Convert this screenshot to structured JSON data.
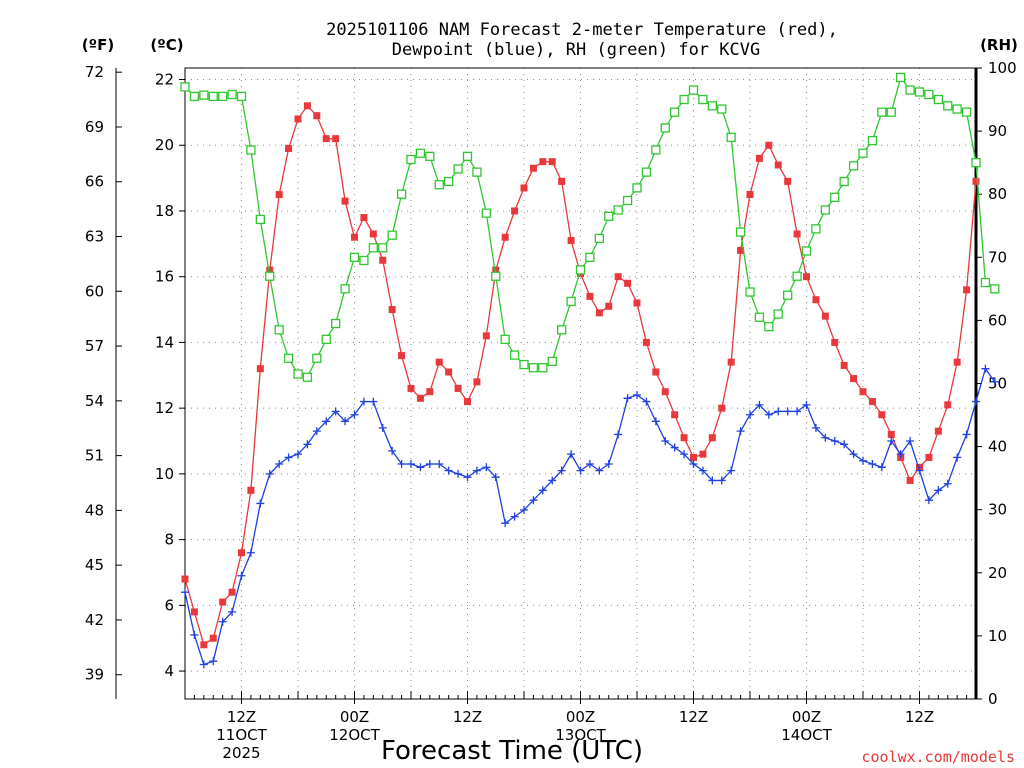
{
  "chart_data": {
    "type": "line",
    "title_lines": [
      "2025101106 NAM Forecast 2-meter Temperature (red),",
      "Dewpoint (blue), RH (green) for KCVG"
    ],
    "xlabel": "Forecast Time (UTC)",
    "credit": "coolwx.com/models",
    "y_left_units": {
      "f": "(ºF)",
      "c": "(ºC)"
    },
    "y_right_units": "(RH)",
    "y_c_range": [
      3.15,
      22.35
    ],
    "y_c_ticks": [
      "4",
      "6",
      "8",
      "10",
      "12",
      "14",
      "16",
      "18",
      "20",
      "22"
    ],
    "y_f_ticks": [
      "39",
      "42",
      "45",
      "48",
      "51",
      "54",
      "57",
      "60",
      "63",
      "66",
      "69",
      "72"
    ],
    "y_rh_range": [
      0,
      100
    ],
    "y_rh_ticks": [
      "0",
      "10",
      "20",
      "30",
      "40",
      "50",
      "60",
      "70",
      "80",
      "90",
      "100"
    ],
    "x_range_hours": [
      6,
      90
    ],
    "x_ticks": [
      {
        "hour": 12,
        "lines": [
          "12Z",
          "11OCT",
          "2025"
        ]
      },
      {
        "hour": 24,
        "lines": [
          "00Z",
          "12OCT"
        ]
      },
      {
        "hour": 36,
        "lines": [
          "12Z"
        ]
      },
      {
        "hour": 48,
        "lines": [
          "00Z",
          "13OCT"
        ]
      },
      {
        "hour": 60,
        "lines": [
          "12Z"
        ]
      },
      {
        "hour": 72,
        "lines": [
          "00Z",
          "14OCT"
        ]
      },
      {
        "hour": 84,
        "lines": [
          "12Z"
        ]
      }
    ],
    "grid": true,
    "series": [
      {
        "name": "Temperature",
        "unit": "C",
        "color": "#e8383c",
        "marker": "filled-square",
        "points": [
          [
            6,
            6.8
          ],
          [
            7,
            5.8
          ],
          [
            8,
            4.8
          ],
          [
            9,
            5
          ],
          [
            10,
            6.1
          ],
          [
            11,
            6.4
          ],
          [
            12,
            7.6
          ],
          [
            13,
            9.5
          ],
          [
            14,
            13.2
          ],
          [
            15,
            16.2
          ],
          [
            16,
            18.5
          ],
          [
            17,
            19.9
          ],
          [
            18,
            20.8
          ],
          [
            19,
            21.2
          ],
          [
            20,
            20.9
          ],
          [
            21,
            20.2
          ],
          [
            22,
            20.2
          ],
          [
            23,
            18.3
          ],
          [
            24,
            17.2
          ],
          [
            25,
            17.8
          ],
          [
            26,
            17.3
          ],
          [
            27,
            16.5
          ],
          [
            28,
            15
          ],
          [
            29,
            13.6
          ],
          [
            30,
            12.6
          ],
          [
            31,
            12.3
          ],
          [
            32,
            12.5
          ],
          [
            33,
            13.4
          ],
          [
            34,
            13.1
          ],
          [
            35,
            12.6
          ],
          [
            36,
            12.2
          ],
          [
            37,
            12.8
          ],
          [
            38,
            14.2
          ],
          [
            39,
            16.2
          ],
          [
            40,
            17.2
          ],
          [
            41,
            18
          ],
          [
            42,
            18.7
          ],
          [
            43,
            19.3
          ],
          [
            44,
            19.5
          ],
          [
            45,
            19.5
          ],
          [
            46,
            18.9
          ],
          [
            47,
            17.1
          ],
          [
            48,
            16.1
          ],
          [
            49,
            15.4
          ],
          [
            50,
            14.9
          ],
          [
            51,
            15.1
          ],
          [
            52,
            16
          ],
          [
            53,
            15.8
          ],
          [
            54,
            15.2
          ],
          [
            55,
            14
          ],
          [
            56,
            13.1
          ],
          [
            57,
            12.5
          ],
          [
            58,
            11.8
          ],
          [
            59,
            11.1
          ],
          [
            60,
            10.5
          ],
          [
            61,
            10.6
          ],
          [
            62,
            11.1
          ],
          [
            63,
            12
          ],
          [
            64,
            13.4
          ],
          [
            65,
            16.8
          ],
          [
            66,
            18.5
          ],
          [
            67,
            19.6
          ],
          [
            68,
            20
          ],
          [
            69,
            19.4
          ],
          [
            70,
            18.9
          ],
          [
            71,
            17.3
          ],
          [
            72,
            16
          ],
          [
            73,
            15.3
          ],
          [
            74,
            14.8
          ],
          [
            75,
            14
          ],
          [
            76,
            13.3
          ],
          [
            77,
            12.9
          ],
          [
            78,
            12.5
          ],
          [
            79,
            12.2
          ],
          [
            80,
            11.8
          ],
          [
            81,
            11.2
          ],
          [
            82,
            10.5
          ],
          [
            83,
            9.8
          ],
          [
            84,
            10.2
          ],
          [
            85,
            10.5
          ],
          [
            86,
            11.3
          ],
          [
            87,
            12.1
          ],
          [
            88,
            13.4
          ],
          [
            89,
            15.6
          ],
          [
            90,
            18.9
          ]
        ]
      },
      {
        "name": "Dewpoint",
        "unit": "C",
        "color": "#2040e0",
        "marker": "plus",
        "points": [
          [
            6,
            6.4
          ],
          [
            7,
            5.1
          ],
          [
            8,
            4.2
          ],
          [
            9,
            4.3
          ],
          [
            10,
            5.5
          ],
          [
            11,
            5.8
          ],
          [
            12,
            6.9
          ],
          [
            13,
            7.6
          ],
          [
            14,
            9.1
          ],
          [
            15,
            10
          ],
          [
            16,
            10.3
          ],
          [
            17,
            10.5
          ],
          [
            18,
            10.6
          ],
          [
            19,
            10.9
          ],
          [
            20,
            11.3
          ],
          [
            21,
            11.6
          ],
          [
            22,
            11.9
          ],
          [
            23,
            11.6
          ],
          [
            24,
            11.8
          ],
          [
            25,
            12.2
          ],
          [
            26,
            12.2
          ],
          [
            27,
            11.4
          ],
          [
            28,
            10.7
          ],
          [
            29,
            10.3
          ],
          [
            30,
            10.3
          ],
          [
            31,
            10.2
          ],
          [
            32,
            10.3
          ],
          [
            33,
            10.3
          ],
          [
            34,
            10.1
          ],
          [
            35,
            10
          ],
          [
            36,
            9.9
          ],
          [
            37,
            10.1
          ],
          [
            38,
            10.2
          ],
          [
            39,
            9.9
          ],
          [
            40,
            8.5
          ],
          [
            41,
            8.7
          ],
          [
            42,
            8.9
          ],
          [
            43,
            9.2
          ],
          [
            44,
            9.5
          ],
          [
            45,
            9.8
          ],
          [
            46,
            10.1
          ],
          [
            47,
            10.6
          ],
          [
            48,
            10.1
          ],
          [
            49,
            10.3
          ],
          [
            50,
            10.1
          ],
          [
            51,
            10.3
          ],
          [
            52,
            11.2
          ],
          [
            53,
            12.3
          ],
          [
            54,
            12.4
          ],
          [
            55,
            12.2
          ],
          [
            56,
            11.6
          ],
          [
            57,
            11
          ],
          [
            58,
            10.8
          ],
          [
            59,
            10.6
          ],
          [
            60,
            10.3
          ],
          [
            61,
            10.1
          ],
          [
            62,
            9.8
          ],
          [
            63,
            9.8
          ],
          [
            64,
            10.1
          ],
          [
            65,
            11.3
          ],
          [
            66,
            11.8
          ],
          [
            67,
            12.1
          ],
          [
            68,
            11.8
          ],
          [
            69,
            11.9
          ],
          [
            70,
            11.9
          ],
          [
            71,
            11.9
          ],
          [
            72,
            12.1
          ],
          [
            73,
            11.4
          ],
          [
            74,
            11.1
          ],
          [
            75,
            11
          ],
          [
            76,
            10.9
          ],
          [
            77,
            10.6
          ],
          [
            78,
            10.4
          ],
          [
            79,
            10.3
          ],
          [
            80,
            10.2
          ],
          [
            81,
            11
          ],
          [
            82,
            10.6
          ],
          [
            83,
            11
          ],
          [
            84,
            10.1
          ],
          [
            85,
            9.2
          ],
          [
            86,
            9.5
          ],
          [
            87,
            9.7
          ],
          [
            88,
            10.5
          ],
          [
            89,
            11.2
          ],
          [
            90,
            12.2
          ],
          [
            91,
            13.2
          ],
          [
            92,
            12.8
          ]
        ]
      },
      {
        "name": "RH",
        "unit": "percent",
        "color": "#2ec82e",
        "marker": "open-square",
        "points": [
          [
            6,
            97
          ],
          [
            7,
            95.5
          ],
          [
            8,
            95.7
          ],
          [
            9,
            95.5
          ],
          [
            10,
            95.5
          ],
          [
            11,
            95.8
          ],
          [
            12,
            95.5
          ],
          [
            13,
            87
          ],
          [
            14,
            76
          ],
          [
            15,
            67
          ],
          [
            16,
            58.5
          ],
          [
            17,
            54
          ],
          [
            18,
            51.5
          ],
          [
            19,
            51
          ],
          [
            20,
            54
          ],
          [
            21,
            57
          ],
          [
            22,
            59.5
          ],
          [
            23,
            65
          ],
          [
            24,
            70
          ],
          [
            25,
            69.5
          ],
          [
            26,
            71.5
          ],
          [
            27,
            71.5
          ],
          [
            28,
            73.5
          ],
          [
            29,
            80
          ],
          [
            30,
            85.5
          ],
          [
            31,
            86.5
          ],
          [
            32,
            86
          ],
          [
            33,
            81.5
          ],
          [
            34,
            82
          ],
          [
            35,
            84
          ],
          [
            36,
            86
          ],
          [
            37,
            83.5
          ],
          [
            38,
            77
          ],
          [
            39,
            67
          ],
          [
            40,
            57
          ],
          [
            41,
            54.5
          ],
          [
            42,
            53
          ],
          [
            43,
            52.5
          ],
          [
            44,
            52.5
          ],
          [
            45,
            53.5
          ],
          [
            46,
            58.5
          ],
          [
            47,
            63
          ],
          [
            48,
            68
          ],
          [
            49,
            70
          ],
          [
            50,
            73
          ],
          [
            51,
            76.5
          ],
          [
            52,
            77.5
          ],
          [
            53,
            79
          ],
          [
            54,
            81
          ],
          [
            55,
            83.5
          ],
          [
            56,
            87
          ],
          [
            57,
            90.5
          ],
          [
            58,
            93
          ],
          [
            59,
            95
          ],
          [
            60,
            96.5
          ],
          [
            61,
            95
          ],
          [
            62,
            94
          ],
          [
            63,
            93.5
          ],
          [
            64,
            89
          ],
          [
            65,
            74
          ],
          [
            66,
            64.5
          ],
          [
            67,
            60.5
          ],
          [
            68,
            59
          ],
          [
            69,
            61
          ],
          [
            70,
            64
          ],
          [
            71,
            67
          ],
          [
            72,
            71
          ],
          [
            73,
            74.5
          ],
          [
            74,
            77.5
          ],
          [
            75,
            79.5
          ],
          [
            76,
            82
          ],
          [
            77,
            84.5
          ],
          [
            78,
            86.5
          ],
          [
            79,
            88.5
          ],
          [
            80,
            93
          ],
          [
            81,
            93
          ],
          [
            82,
            98.5
          ],
          [
            83,
            96.5
          ],
          [
            84,
            96.2
          ],
          [
            85,
            95.8
          ],
          [
            86,
            95
          ],
          [
            87,
            94
          ],
          [
            88,
            93.5
          ],
          [
            89,
            93
          ],
          [
            90,
            85
          ],
          [
            91,
            66
          ],
          [
            92,
            65
          ]
        ]
      }
    ]
  }
}
